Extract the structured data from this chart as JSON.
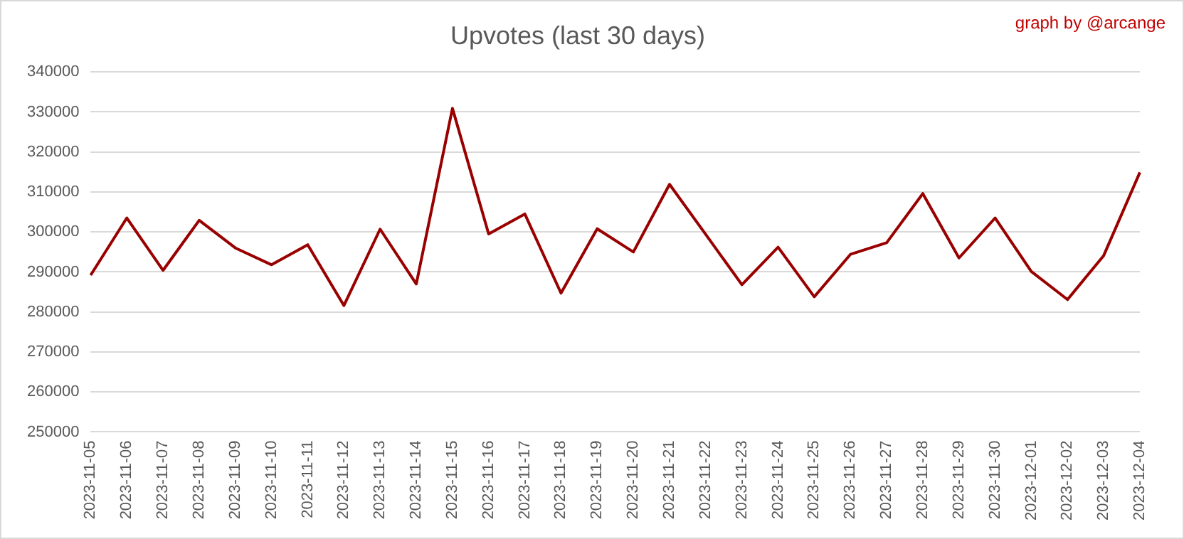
{
  "chart_data": {
    "type": "line",
    "title": "Upvotes (last 30 days)",
    "annotations": [
      "graph by @arcange"
    ],
    "categories": [
      "2023-11-05",
      "2023-11-06",
      "2023-11-07",
      "2023-11-08",
      "2023-11-09",
      "2023-11-10",
      "2023-11-11",
      "2023-11-12",
      "2023-11-13",
      "2023-11-14",
      "2023-11-15",
      "2023-11-16",
      "2023-11-17",
      "2023-11-18",
      "2023-11-19",
      "2023-11-20",
      "2023-11-21",
      "2023-11-22",
      "2023-11-23",
      "2023-11-24",
      "2023-11-25",
      "2023-11-26",
      "2023-11-27",
      "2023-11-28",
      "2023-11-29",
      "2023-11-30",
      "2023-12-01",
      "2023-12-02",
      "2023-12-03",
      "2023-12-04"
    ],
    "series": [
      {
        "color": "#990000",
        "values": [
          289200,
          303500,
          290400,
          302900,
          296000,
          291800,
          296800,
          281600,
          300700,
          287000,
          330900,
          299500,
          304500,
          284700,
          300800,
          295000,
          311900,
          299400,
          286800,
          296200,
          283800,
          294400,
          297300,
          309600,
          293500,
          303500,
          290100,
          283100,
          294100,
          314900
        ]
      }
    ],
    "ylim": [
      250000,
      340000
    ],
    "yticks": [
      250000,
      260000,
      270000,
      280000,
      290000,
      300000,
      310000,
      320000,
      330000,
      340000
    ],
    "grid": "y",
    "legend": false,
    "marker": "none",
    "line_style": "solid"
  }
}
